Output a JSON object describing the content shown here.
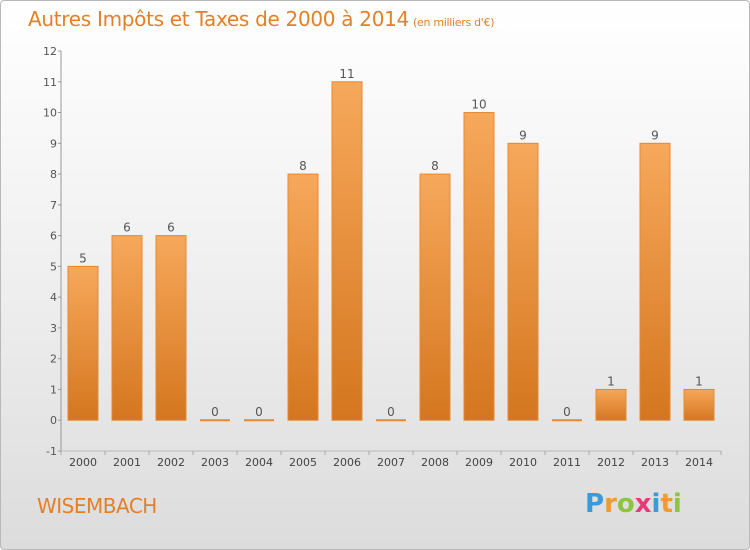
{
  "title": {
    "main": "Autres Impôts et Taxes de 2000 à 2014",
    "unit": "(en milliers d'€)"
  },
  "commune": "WISEMBACH",
  "logo": {
    "letters": [
      "P",
      "r",
      "o",
      "x",
      "i",
      "t",
      "i"
    ],
    "colors": [
      "#3b9bd8",
      "#f29a2e",
      "#8cc63f",
      "#e63b7a",
      "#3b9bd8",
      "#f29a2e",
      "#8cc63f"
    ]
  },
  "colors": {
    "accent": "#e57f25",
    "bar_top": "#f7a85a",
    "bar_bottom": "#d4761f"
  },
  "chart_data": {
    "type": "bar",
    "categories": [
      "2000",
      "2001",
      "2002",
      "2003",
      "2004",
      "2005",
      "2006",
      "2007",
      "2008",
      "2009",
      "2010",
      "2011",
      "2012",
      "2013",
      "2014"
    ],
    "values": [
      5,
      6,
      6,
      0,
      0,
      8,
      11,
      0,
      8,
      10,
      9,
      0,
      1,
      9,
      1
    ],
    "yticks": [
      "-1",
      "0",
      "1",
      "2",
      "3",
      "4",
      "5",
      "6",
      "7",
      "8",
      "9",
      "10",
      "11",
      "12"
    ],
    "ylim": [
      -1,
      12
    ],
    "grid": false
  }
}
